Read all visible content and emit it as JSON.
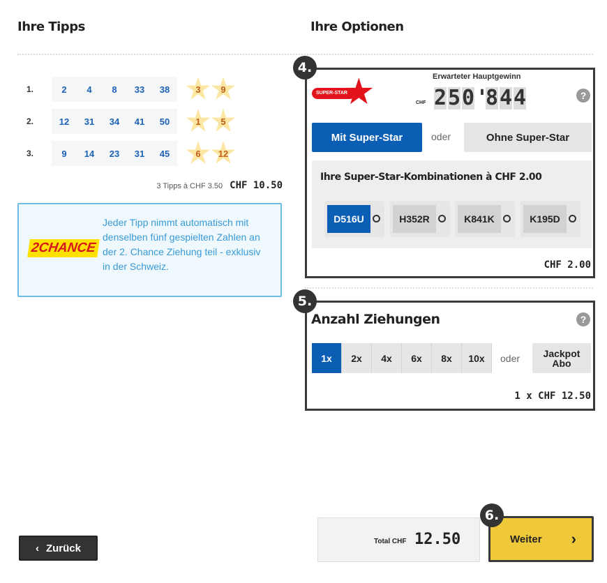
{
  "tips": {
    "title": "Ihre Tipps",
    "rows": [
      {
        "idx": "1.",
        "numbers": [
          "2",
          "4",
          "8",
          "33",
          "38"
        ],
        "stars": [
          "3",
          "9"
        ]
      },
      {
        "idx": "2.",
        "numbers": [
          "12",
          "31",
          "34",
          "41",
          "50"
        ],
        "stars": [
          "1",
          "5"
        ]
      },
      {
        "idx": "3.",
        "numbers": [
          "9",
          "14",
          "23",
          "31",
          "45"
        ],
        "stars": [
          "6",
          "12"
        ]
      }
    ],
    "summary": "3 Tipps à CHF 3.50",
    "total": "CHF 10.50"
  },
  "chance": {
    "logo": "2CHANCE",
    "text": "Jeder Tipp nimmt automatisch mit denselben fünf gespielten Zahlen an der 2. Chance Ziehung teil - exklusiv in der Schweiz."
  },
  "options": {
    "title": "Ihre Optionen",
    "superstar": {
      "step": "4.",
      "logo": "SUPER-STAR",
      "jackpot_label": "Erwarteter Hauptgewinn",
      "currency": "CHF",
      "jackpot_digits": [
        "2",
        "5",
        "0",
        "'",
        "8",
        "4",
        "4"
      ],
      "with_label": "Mit Super-Star",
      "or": "oder",
      "without_label": "Ohne Super-Star",
      "selected": "with",
      "combos_title": "Ihre Super-Star-Kombinationen à CHF 2.00",
      "combos": [
        "D516U",
        "H352R",
        "K841K",
        "K195D"
      ],
      "selected_combo": "D516U",
      "price": "CHF 2.00"
    },
    "draws": {
      "step": "5.",
      "title": "Anzahl Ziehungen",
      "options": [
        "1x",
        "2x",
        "4x",
        "6x",
        "8x",
        "10x"
      ],
      "selected": "1x",
      "or": "oder",
      "jackpot_abo": "Jackpot Abo",
      "price": "1 x CHF 12.50"
    }
  },
  "footer": {
    "back": "Zurück",
    "total_label": "Total CHF",
    "total": "12.50",
    "step": "6.",
    "next": "Weiter"
  },
  "colors": {
    "primary": "#0a5eb4",
    "next": "#f0c93a",
    "chance_text": "#3a9ad6"
  }
}
